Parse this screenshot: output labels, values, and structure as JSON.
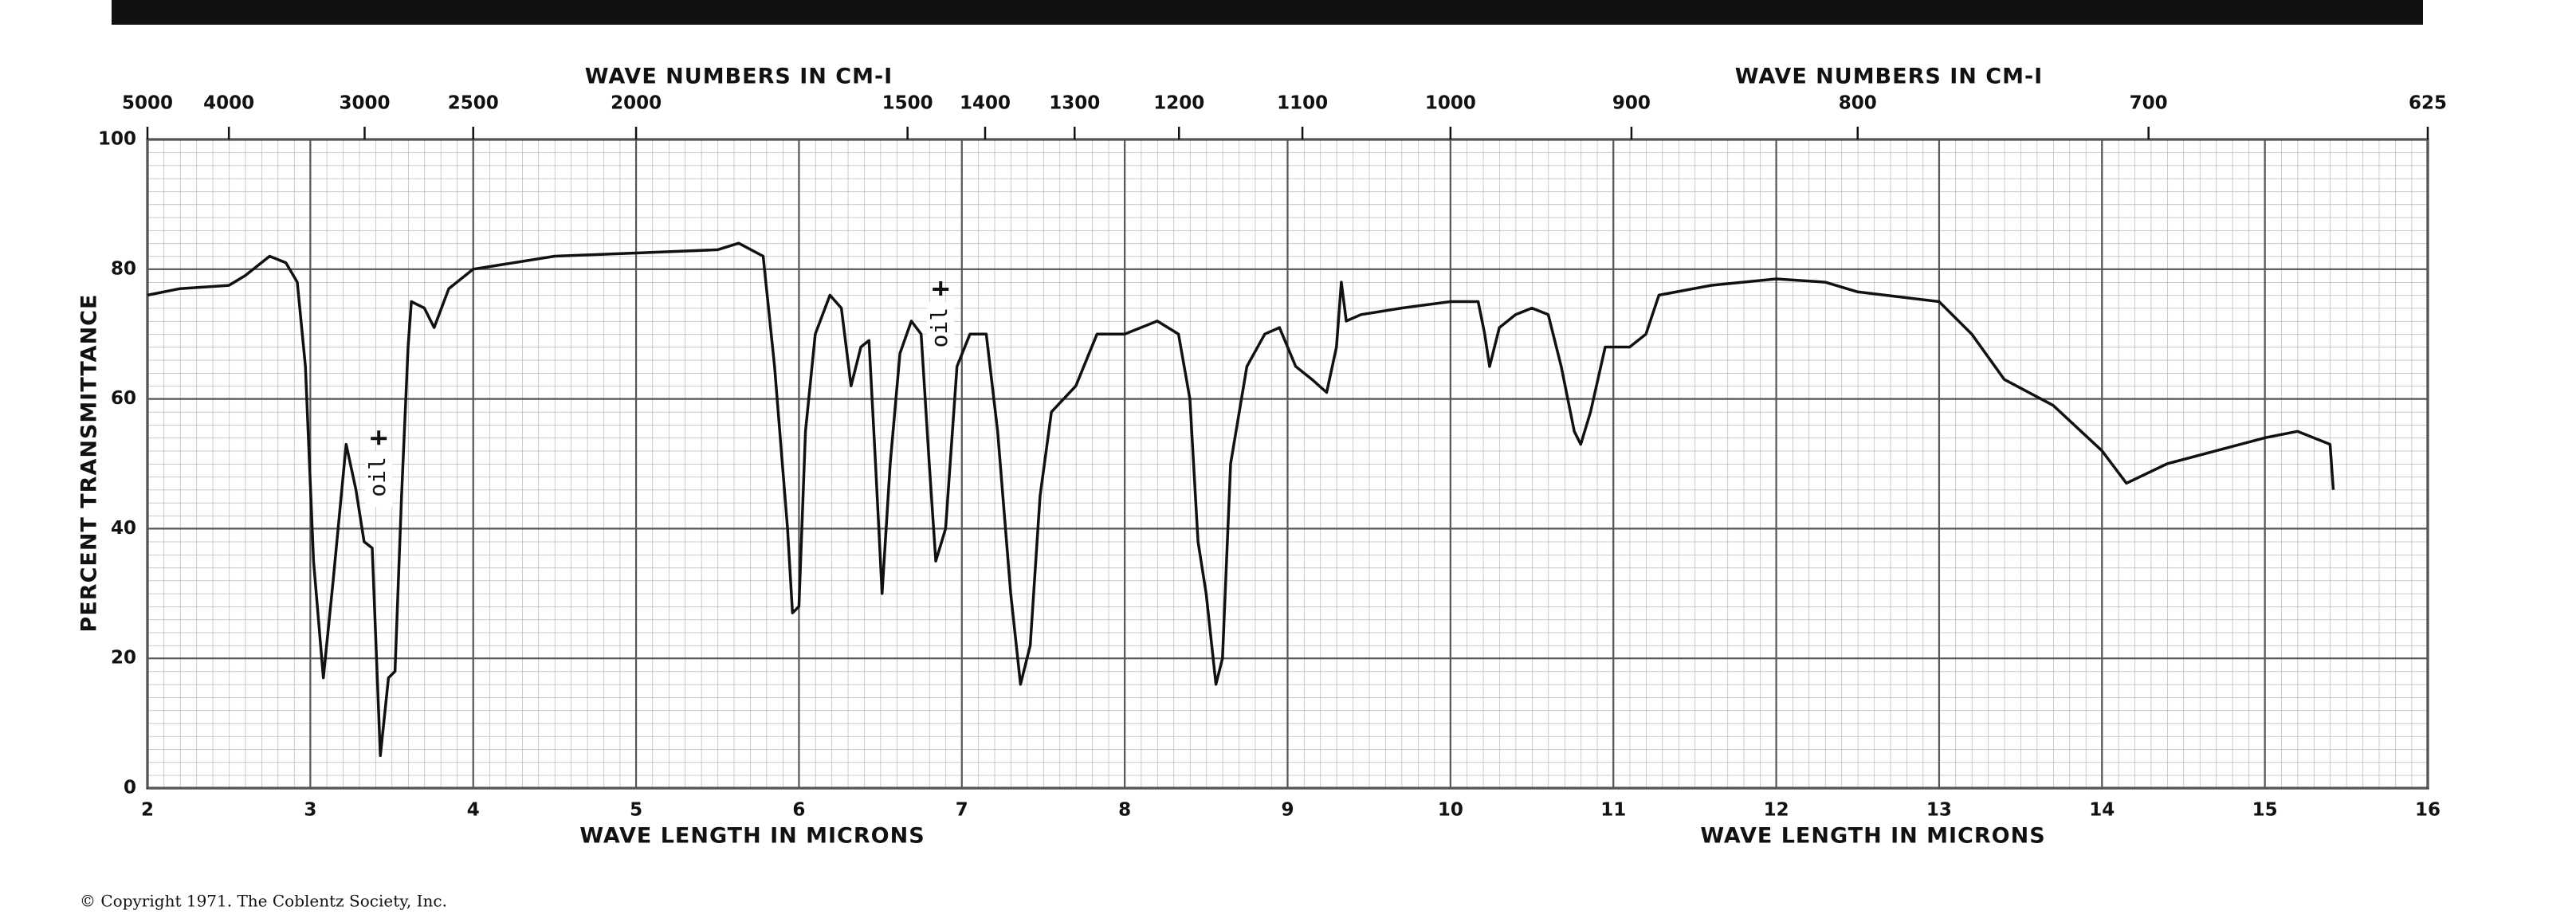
{
  "chart_data": {
    "type": "line",
    "xlabel": "WAVE LENGTH IN MICRONS",
    "ylabel": "PERCENT TRANSMITTANCE",
    "top_axis": {
      "label": "WAVE NUMBERS IN CM-I",
      "ticks": [
        5000,
        4000,
        3000,
        2500,
        2000,
        1500,
        1400,
        1300,
        1200,
        1100,
        1000,
        900,
        800,
        700,
        625
      ]
    },
    "xlim": [
      2,
      16
    ],
    "xticks": [
      2,
      3,
      4,
      5,
      6,
      7,
      8,
      9,
      10,
      11,
      12,
      13,
      14,
      15,
      16
    ],
    "ylim": [
      0,
      100
    ],
    "yticks": [
      0,
      20,
      40,
      60,
      80,
      100
    ],
    "grid": true,
    "color": "#111111",
    "x": [
      2.0,
      2.2,
      2.5,
      2.6,
      2.75,
      2.85,
      2.92,
      2.97,
      3.02,
      3.08,
      3.14,
      3.22,
      3.28,
      3.33,
      3.38,
      3.43,
      3.48,
      3.52,
      3.56,
      3.6,
      3.62,
      3.7,
      3.76,
      3.85,
      4.0,
      4.5,
      5.0,
      5.5,
      5.63,
      5.78,
      5.85,
      5.93,
      5.96,
      6.0,
      6.04,
      6.1,
      6.19,
      6.26,
      6.32,
      6.38,
      6.43,
      6.47,
      6.51,
      6.56,
      6.62,
      6.69,
      6.75,
      6.8,
      6.84,
      6.9,
      6.97,
      7.05,
      7.15,
      7.22,
      7.3,
      7.36,
      7.42,
      7.48,
      7.55,
      7.7,
      7.83,
      8.0,
      8.2,
      8.33,
      8.4,
      8.45,
      8.5,
      8.56,
      8.6,
      8.65,
      8.75,
      8.86,
      8.95,
      9.05,
      9.15,
      9.24,
      9.3,
      9.33,
      9.36,
      9.45,
      9.7,
      10.0,
      10.17,
      10.21,
      10.24,
      10.3,
      10.4,
      10.5,
      10.6,
      10.68,
      10.76,
      10.8,
      10.86,
      10.95,
      11.1,
      11.2,
      11.28,
      11.6,
      12.0,
      12.3,
      12.5,
      13.0,
      13.2,
      13.4,
      13.7,
      14.0,
      14.15,
      14.4,
      14.7,
      15.0,
      15.2,
      15.4,
      15.42
    ],
    "values": [
      76,
      77,
      77.5,
      79,
      82,
      81,
      78,
      65,
      35,
      17,
      32,
      53,
      46,
      38,
      37,
      5,
      17,
      18,
      45,
      68,
      75,
      74,
      71,
      77,
      80,
      82,
      82.5,
      83,
      84,
      82,
      65,
      40,
      27,
      28,
      55,
      70,
      76,
      74,
      62,
      68,
      69,
      50,
      30,
      50,
      67,
      72,
      70,
      50,
      35,
      40,
      65,
      70,
      70,
      55,
      30,
      16,
      22,
      45,
      58,
      62,
      70,
      70,
      72,
      70,
      60,
      38,
      30,
      16,
      20,
      50,
      65,
      70,
      71,
      65,
      63,
      61,
      68,
      78,
      72,
      73,
      74,
      75,
      75,
      70,
      65,
      71,
      73,
      74,
      73,
      65,
      55,
      53,
      58,
      68,
      68,
      70,
      76,
      77.5,
      78.5,
      78,
      76.5,
      75,
      70,
      63,
      59,
      52,
      47,
      50,
      52,
      54,
      55,
      53,
      46
    ],
    "annotations": [
      {
        "text": "oil",
        "x": 3.42,
        "y": 48
      },
      {
        "text": "oil",
        "x": 6.87,
        "y": 71
      }
    ],
    "copyright": "© Copyright 1971. The Coblentz Society, Inc."
  }
}
